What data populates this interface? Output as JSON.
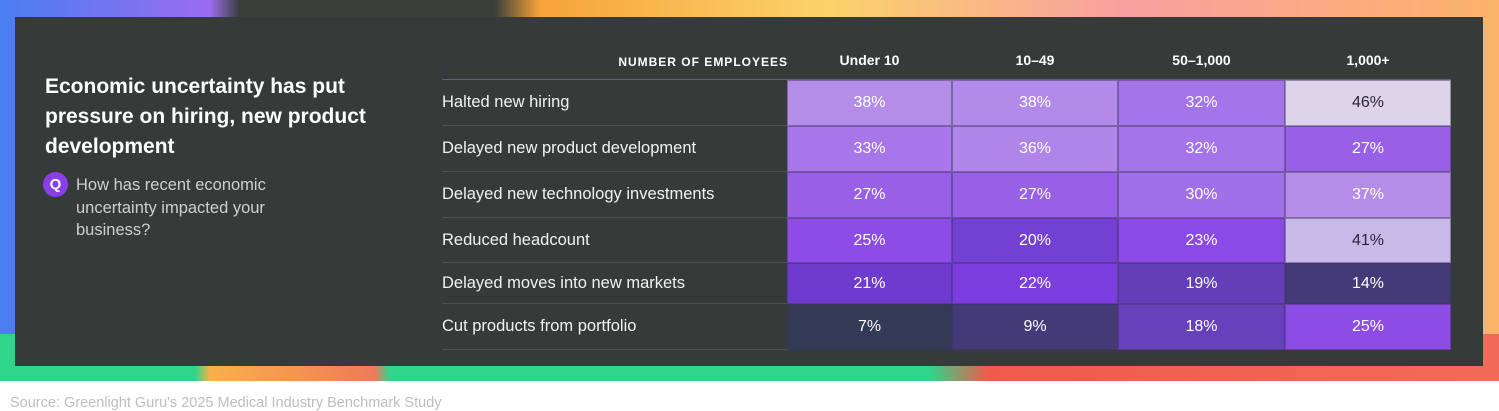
{
  "title": "Economic uncertainty has put pressure on hiring, new product development",
  "question": {
    "badge": "Q",
    "text": "How has recent economic uncertainty impacted your business?"
  },
  "source": "Source: Greenlight Guru's 2025 Medical Industry Benchmark Study",
  "chart_data": {
    "type": "heatmap",
    "row_header": "NUMBER OF EMPLOYEES",
    "columns": [
      "Under 10",
      "10–49",
      "50–1,000",
      "1,000+"
    ],
    "rows": [
      {
        "label": "Halted new hiring",
        "values": [
          38,
          38,
          32,
          46
        ],
        "display": [
          "38%",
          "38%",
          "32%",
          "46%"
        ],
        "colors": [
          "#b48de9",
          "#b28aea",
          "#a474ea",
          "#dcd4e8"
        ]
      },
      {
        "label": "Delayed new product development",
        "values": [
          33,
          36,
          32,
          27
        ],
        "display": [
          "33%",
          "36%",
          "32%",
          "27%"
        ],
        "colors": [
          "#a676ea",
          "#b085ea",
          "#a474ea",
          "#9860e6"
        ]
      },
      {
        "label": "Delayed new technology investments",
        "values": [
          27,
          27,
          30,
          37
        ],
        "display": [
          "27%",
          "27%",
          "30%",
          "37%"
        ],
        "colors": [
          "#9860e6",
          "#9860e6",
          "#a070e8",
          "#b48de9"
        ]
      },
      {
        "label": "Reduced headcount",
        "values": [
          25,
          20,
          23,
          41
        ],
        "display": [
          "25%",
          "20%",
          "23%",
          "41%"
        ],
        "colors": [
          "#8e4ce6",
          "#7240d2",
          "#8b4ae5",
          "#c9b9e8"
        ]
      },
      {
        "label": "Delayed moves into new markets",
        "values": [
          21,
          22,
          19,
          14
        ],
        "display": [
          "21%",
          "22%",
          "19%",
          "14%"
        ],
        "colors": [
          "#6f3bcf",
          "#7c3ddf",
          "#6440b8",
          "#453a78"
        ]
      },
      {
        "label": "Cut products from portfolio",
        "values": [
          7,
          9,
          18,
          25
        ],
        "display": [
          "7%",
          "9%",
          "18%",
          "25%"
        ],
        "colors": [
          "#333a55",
          "#453a78",
          "#6740bb",
          "#8e4ce6"
        ]
      }
    ],
    "dark_text_colors": [
      "#dcd4e8",
      "#c9b9e8"
    ],
    "accent": "#8a3ee8"
  }
}
